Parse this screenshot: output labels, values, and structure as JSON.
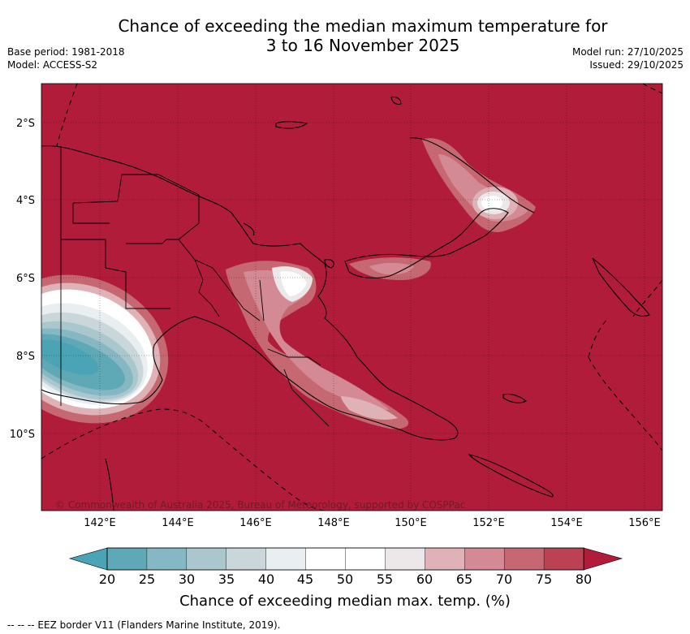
{
  "header": {
    "title_line1": "Chance of exceeding the median maximum temperature for",
    "title_line2": "3 to 16 November 2025",
    "base_period": "Base period: 1981-2018",
    "model": "Model: ACCESS-S2",
    "model_run": "Model run: 27/10/2025",
    "issued": "Issued: 29/10/2025"
  },
  "map": {
    "copyright": "© Commonwealth of Australia 2025, Bureau of Meteorology, supported by COSPPac",
    "lat_labels": [
      "2°S",
      "4°S",
      "6°S",
      "8°S",
      "10°S"
    ],
    "lon_labels": [
      "142°E",
      "144°E",
      "146°E",
      "148°E",
      "150°E",
      "152°E",
      "154°E",
      "156°E"
    ],
    "lat_range": [
      -12,
      -1
    ],
    "lon_range": [
      140.5,
      156.5
    ]
  },
  "colorbar": {
    "ticks": [
      "20",
      "25",
      "30",
      "35",
      "40",
      "45",
      "50",
      "55",
      "60",
      "65",
      "70",
      "75",
      "80"
    ],
    "title": "Chance of exceeding median max. temp. (%)",
    "colors": [
      "#5fa8b6",
      "#86b8c3",
      "#a9c7cd",
      "#c9d6da",
      "#e9eef0",
      "#ffffff",
      "#ffffff",
      "#ece7e8",
      "#dfb2b8",
      "#d48a95",
      "#c66872",
      "#bb4252"
    ],
    "high_color": "#b11c3a",
    "low_color": "#4aa4b5"
  },
  "footer": {
    "legend_text": "-- -- -- EEZ border V11 (Flanders Marine Institute, 2019)."
  }
}
